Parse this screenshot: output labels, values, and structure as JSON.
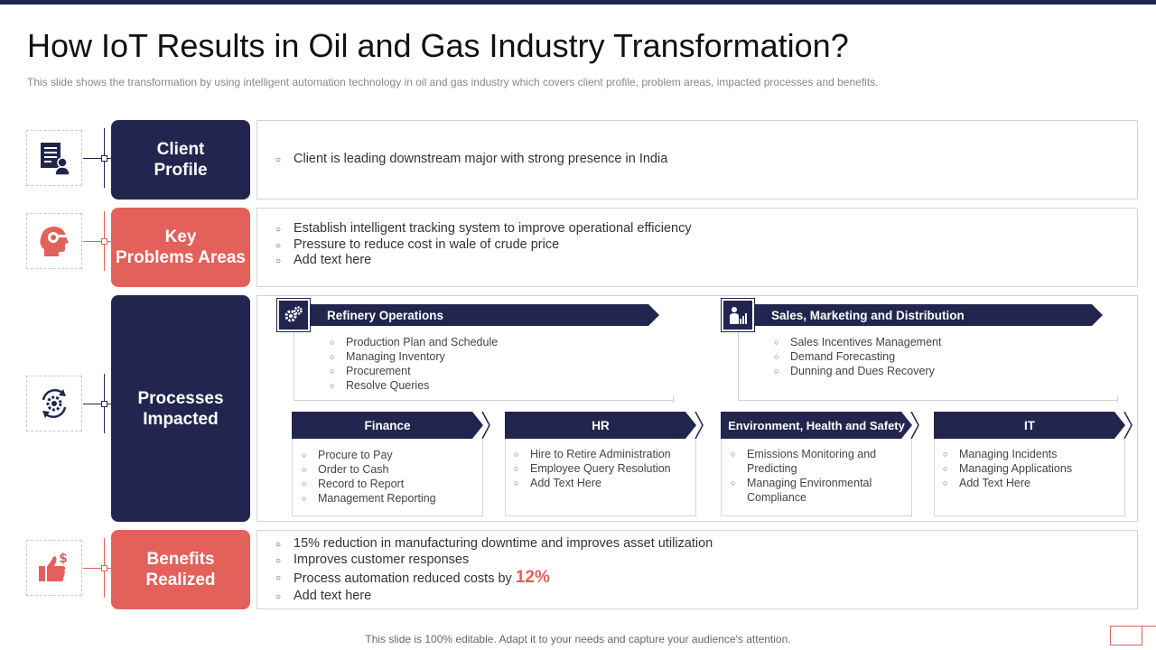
{
  "title": "How IoT Results in Oil and Gas Industry Transformation?",
  "subtitle": "This slide shows the transformation  by using intelligent automation technology in oil and gas industry which covers client profile, problem areas, impacted processes and benefits.",
  "colors": {
    "navy": "#22264e",
    "coral": "#e4605a"
  },
  "rows": {
    "client": {
      "icon": "document-person-icon",
      "label_line1": "Client",
      "label_line2": "Profile",
      "bullets": [
        "Client is leading downstream major with strong presence in India"
      ]
    },
    "problems": {
      "icon": "head-gear-icon",
      "label_line1": "Key",
      "label_line2": "Problems Areas",
      "bullets": [
        "Establish intelligent tracking system to improve operational efficiency",
        "Pressure to reduce cost in wale of crude price",
        "Add text here"
      ]
    },
    "processes": {
      "icon": "cycle-gear-icon",
      "label_line1": "Processes",
      "label_line2": "Impacted",
      "refinery": {
        "icon": "gears-icon",
        "title": "Refinery Operations",
        "items": [
          "Production Plan and Schedule",
          "Managing Inventory",
          "Procurement",
          "Resolve  Queries"
        ]
      },
      "sales": {
        "icon": "sales-chart-icon",
        "title": "Sales, Marketing and Distribution",
        "items": [
          "Sales Incentives Management",
          "Demand Forecasting",
          "Dunning and Dues Recovery"
        ]
      },
      "finance": {
        "title": "Finance",
        "items": [
          "Procure to Pay",
          "Order to Cash",
          "Record to Report",
          "Management  Reporting"
        ]
      },
      "hr": {
        "title": "HR",
        "items": [
          "Hire to Retire Administration",
          "Employee Query Resolution",
          "Add Text Here"
        ]
      },
      "ehs": {
        "title": "Environment, Health and Safety",
        "items": [
          "Emissions Monitoring and Predicting",
          "Managing Environmental Compliance"
        ]
      },
      "it": {
        "title": "IT",
        "items": [
          "Managing Incidents",
          "Managing Applications",
          "Add Text Here"
        ]
      }
    },
    "benefits": {
      "icon": "thumbs-up-dollar-icon",
      "label_line1": "Benefits",
      "label_line2": "Realized",
      "bullet1": "15% reduction in manufacturing downtime and improves asset utilization",
      "bullet2": "Improves customer responses",
      "bullet3_text": "Process automation reduced costs by ",
      "bullet3_value": "12%",
      "bullet4": "Add text here"
    }
  },
  "footer": "This slide is 100% editable. Adapt it to your needs and capture your audience's attention."
}
